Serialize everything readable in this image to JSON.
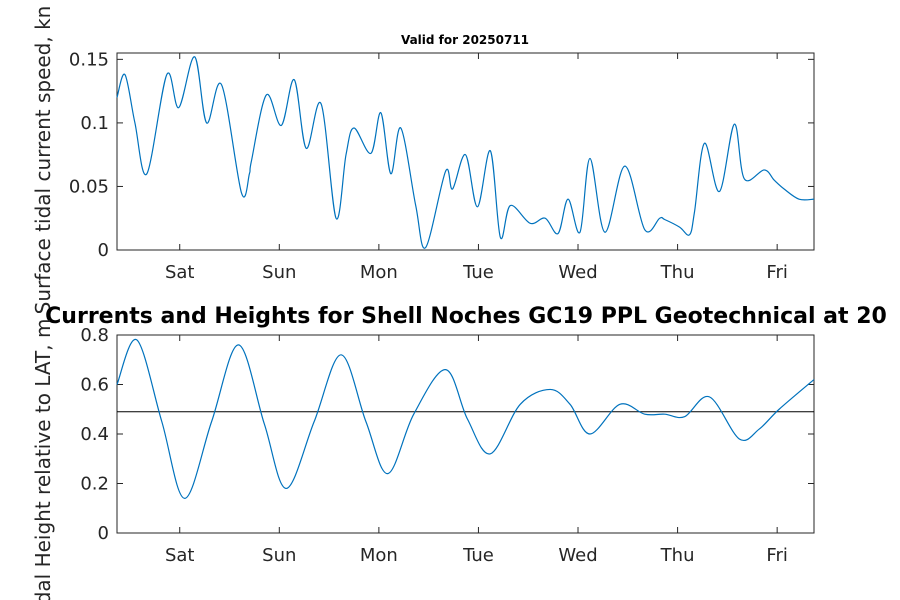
{
  "colors": {
    "series": "#0072BD",
    "reference": "#000000",
    "axis": "#262626"
  },
  "chart_data": [
    {
      "type": "line",
      "title": "Valid for 20250711",
      "ylabel": "Surface tidal current speed, kn",
      "ylim": [
        0,
        0.155
      ],
      "yticks": [
        0,
        0.05,
        0.1,
        0.15
      ],
      "ytick_labels": [
        "0",
        "0.05",
        "0.1",
        "0.15"
      ],
      "xlim": [
        0,
        7
      ],
      "xtick_positions": [
        0.63,
        1.63,
        2.63,
        3.63,
        4.63,
        5.63,
        6.63
      ],
      "xtick_labels": [
        "Sat",
        "Sun",
        "Mon",
        "Tue",
        "Wed",
        "Thu",
        "Fri"
      ],
      "grid": false,
      "series": [
        {
          "x": [
            0.0,
            0.08,
            0.18,
            0.3,
            0.5,
            0.62,
            0.78,
            0.9,
            1.05,
            1.25,
            1.33,
            1.35,
            1.5,
            1.65,
            1.78,
            1.9,
            2.05,
            2.2,
            2.3,
            2.38,
            2.55,
            2.65,
            2.75,
            2.85,
            3.0,
            3.1,
            3.3,
            3.37,
            3.5,
            3.62,
            3.75,
            3.85,
            3.95,
            4.15,
            4.3,
            4.43,
            4.53,
            4.65,
            4.75,
            4.9,
            5.1,
            5.3,
            5.45,
            5.5,
            5.65,
            5.75,
            5.8,
            5.9,
            6.05,
            6.2,
            6.3,
            6.5,
            6.6,
            6.7,
            6.85,
            7.0
          ],
          "y": [
            0.12,
            0.138,
            0.1,
            0.06,
            0.138,
            0.112,
            0.152,
            0.1,
            0.13,
            0.045,
            0.06,
            0.07,
            0.122,
            0.098,
            0.134,
            0.08,
            0.115,
            0.025,
            0.075,
            0.096,
            0.076,
            0.108,
            0.06,
            0.096,
            0.035,
            0.002,
            0.062,
            0.048,
            0.075,
            0.034,
            0.078,
            0.01,
            0.035,
            0.021,
            0.025,
            0.013,
            0.04,
            0.014,
            0.072,
            0.014,
            0.066,
            0.016,
            0.025,
            0.024,
            0.018,
            0.012,
            0.03,
            0.084,
            0.046,
            0.099,
            0.056,
            0.063,
            0.055,
            0.048,
            0.04,
            0.04
          ]
        }
      ]
    },
    {
      "type": "line",
      "title": "Currents and Heights for Shell Noches   GC19 PPL  Geotechnical at 20",
      "ylabel": "Tidal Height relative to LAT, m",
      "ylim": [
        0,
        0.8
      ],
      "yticks": [
        0,
        0.2,
        0.4,
        0.6,
        0.8
      ],
      "ytick_labels": [
        "0",
        "0.2",
        "0.4",
        "0.6",
        "0.8"
      ],
      "xlim": [
        0,
        7
      ],
      "xtick_positions": [
        0.63,
        1.63,
        2.63,
        3.63,
        4.63,
        5.63,
        6.63
      ],
      "xtick_labels": [
        "Sat",
        "Sun",
        "Mon",
        "Tue",
        "Wed",
        "Thu",
        "Fri"
      ],
      "grid": false,
      "reference_line": 0.49,
      "series": [
        {
          "x": [
            0.0,
            0.2,
            0.45,
            0.68,
            0.95,
            1.22,
            1.48,
            1.7,
            1.98,
            2.25,
            2.5,
            2.72,
            2.98,
            3.3,
            3.52,
            3.75,
            4.05,
            4.35,
            4.55,
            4.75,
            5.05,
            5.3,
            5.5,
            5.7,
            5.95,
            6.25,
            6.45,
            6.65,
            7.0
          ],
          "y": [
            0.6,
            0.78,
            0.45,
            0.14,
            0.45,
            0.76,
            0.44,
            0.18,
            0.45,
            0.72,
            0.45,
            0.24,
            0.48,
            0.66,
            0.46,
            0.32,
            0.52,
            0.58,
            0.52,
            0.4,
            0.52,
            0.48,
            0.48,
            0.47,
            0.55,
            0.38,
            0.42,
            0.5,
            0.62
          ]
        }
      ]
    }
  ]
}
